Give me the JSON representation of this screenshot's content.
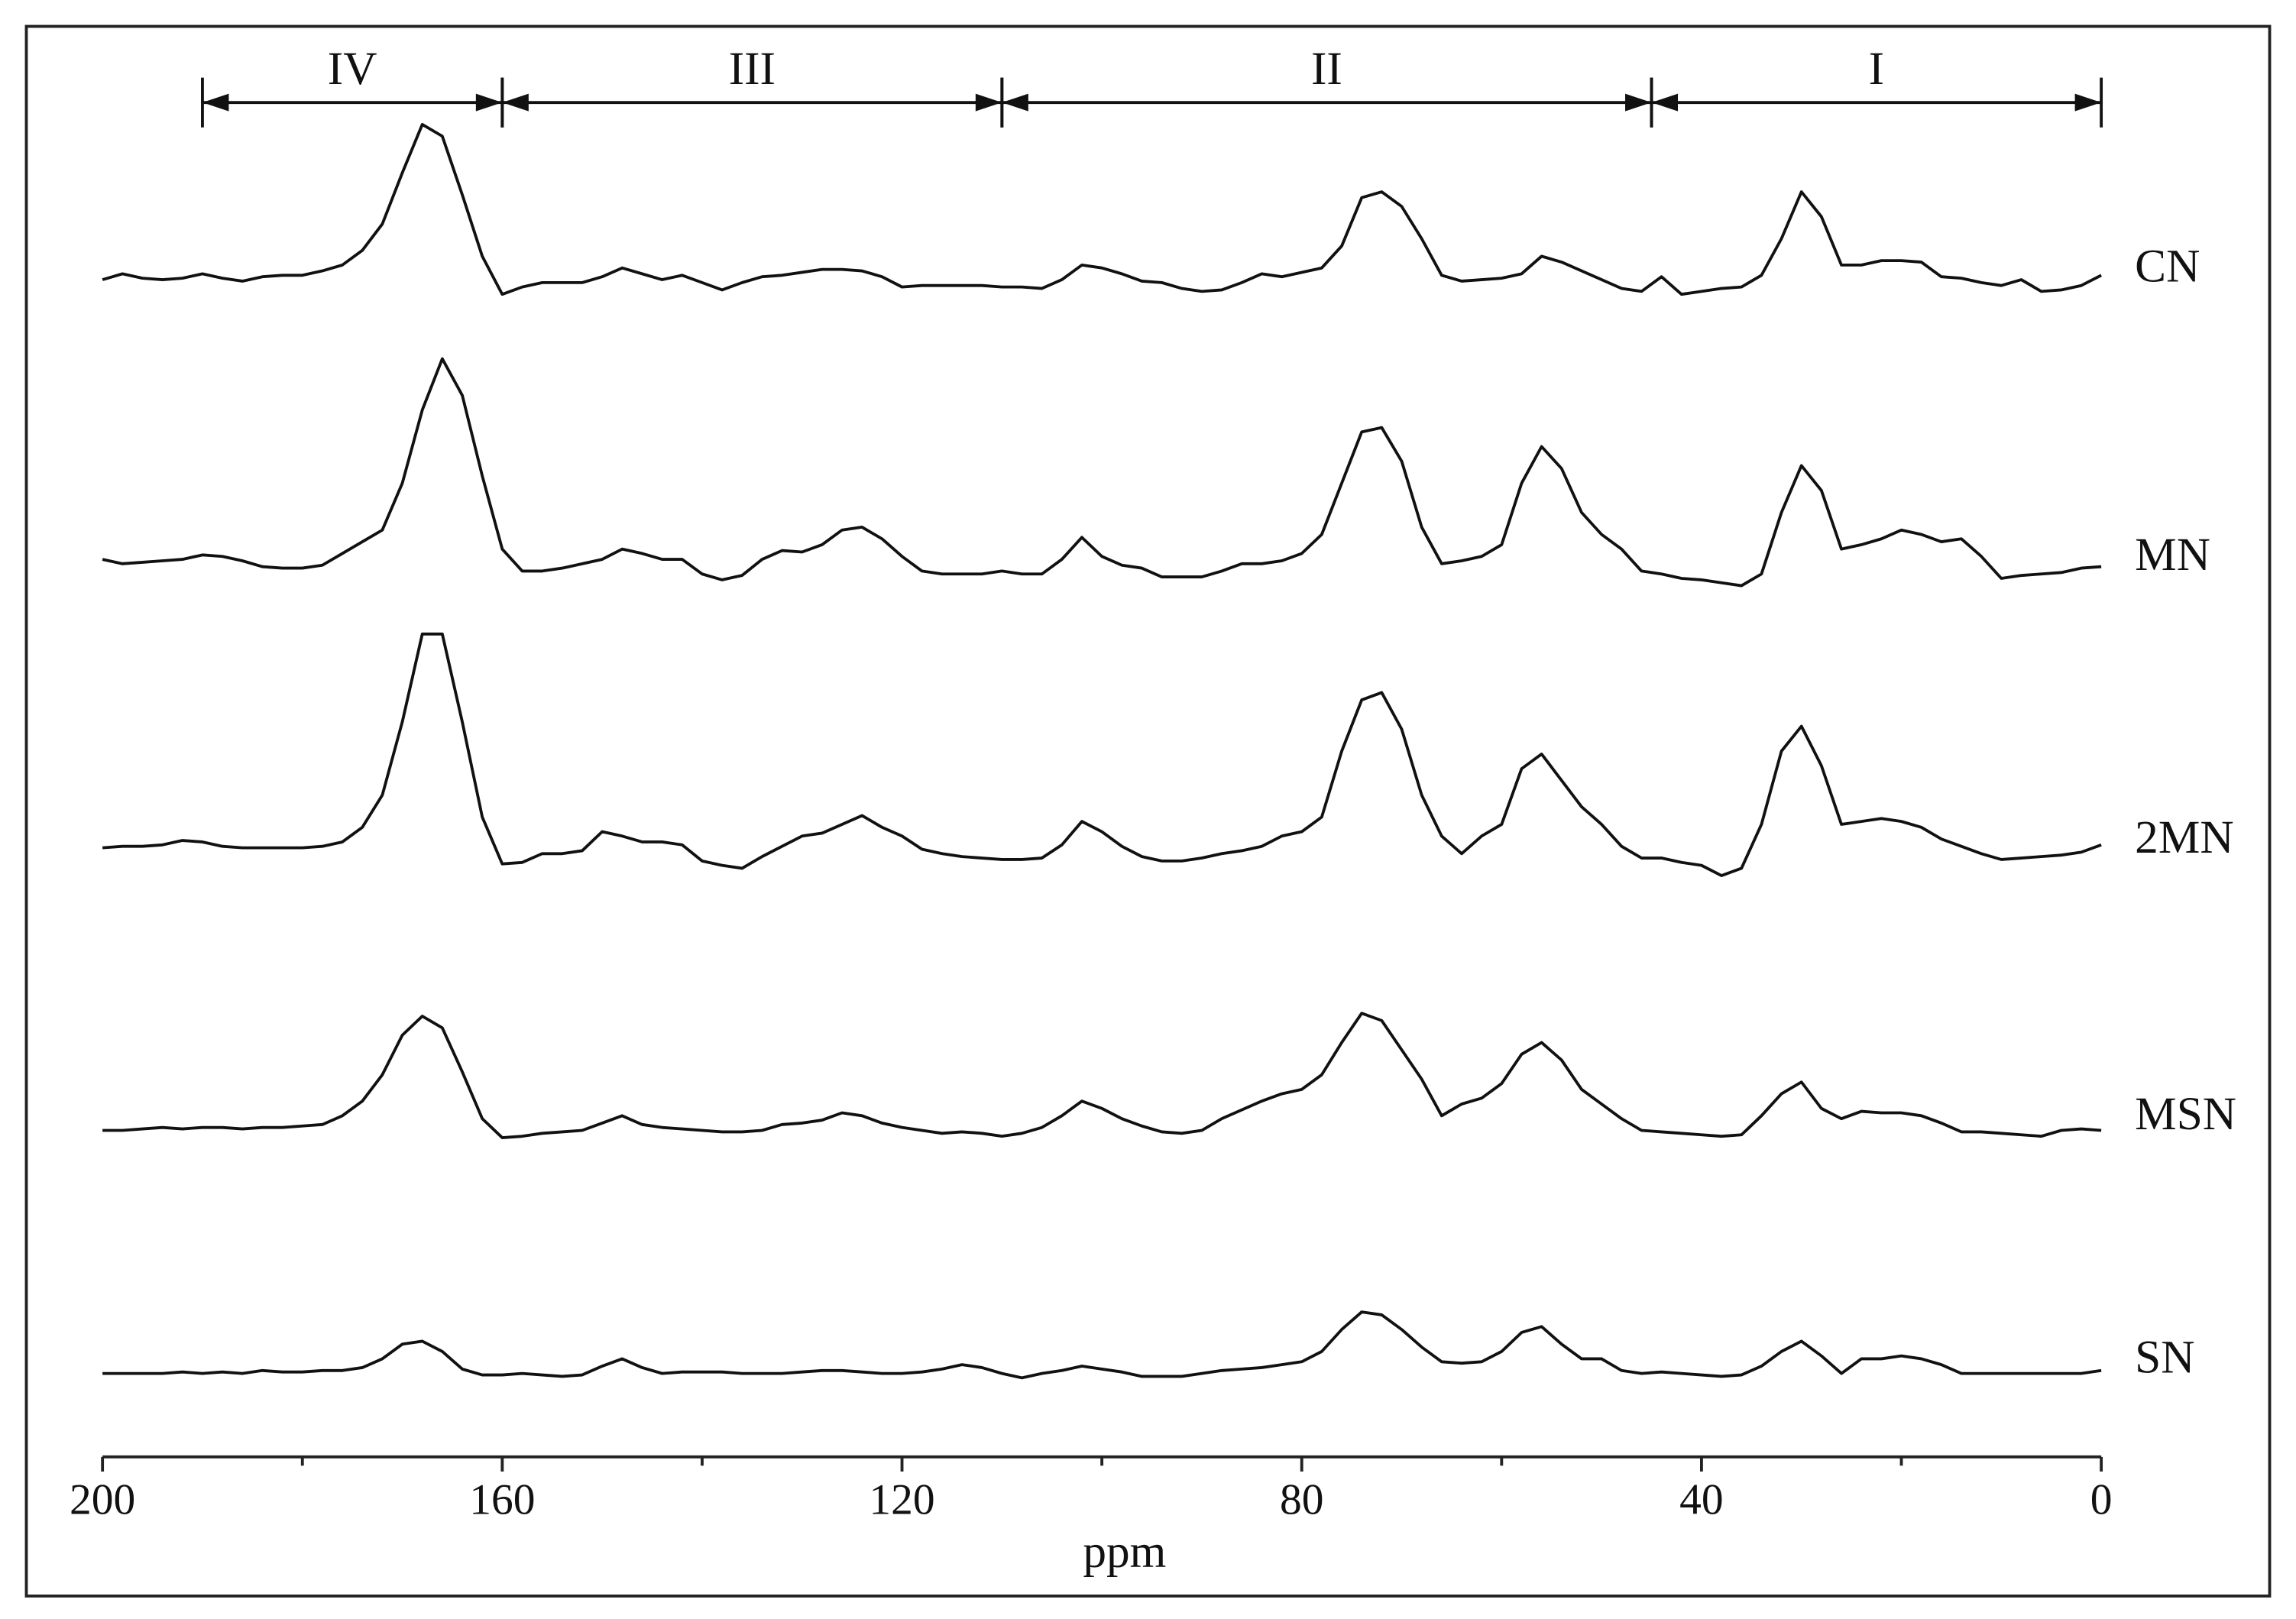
{
  "chart_data": {
    "type": "line",
    "x_label": "ppm",
    "xlim": [
      200,
      0
    ],
    "xticks": [
      200,
      160,
      120,
      80,
      40,
      0
    ],
    "xminorticks": [
      180,
      140,
      100,
      60,
      20
    ],
    "regions": [
      {
        "label": "IV",
        "from": 190,
        "to": 160
      },
      {
        "label": "III",
        "from": 160,
        "to": 110
      },
      {
        "label": "II",
        "from": 110,
        "to": 45
      },
      {
        "label": "I",
        "from": 45,
        "to": 0
      }
    ],
    "x": [
      200,
      198,
      196,
      194,
      192,
      190,
      188,
      186,
      184,
      182,
      180,
      178,
      176,
      174,
      172,
      170,
      168,
      166,
      164,
      162,
      160,
      158,
      156,
      154,
      152,
      150,
      148,
      146,
      144,
      142,
      140,
      138,
      136,
      134,
      132,
      130,
      128,
      126,
      124,
      122,
      120,
      118,
      116,
      114,
      112,
      110,
      108,
      106,
      104,
      102,
      100,
      98,
      96,
      94,
      92,
      90,
      88,
      86,
      84,
      82,
      80,
      78,
      76,
      74,
      72,
      70,
      68,
      66,
      64,
      62,
      60,
      58,
      56,
      54,
      52,
      50,
      48,
      46,
      44,
      42,
      40,
      38,
      36,
      34,
      32,
      30,
      28,
      26,
      24,
      22,
      20,
      18,
      16,
      14,
      12,
      10,
      8,
      6,
      4,
      2,
      0
    ],
    "series": [
      {
        "name": "CN",
        "color": "#111111",
        "values": [
          2,
          6,
          3,
          2,
          3,
          6,
          3,
          1,
          4,
          5,
          5,
          8,
          12,
          22,
          40,
          75,
          108,
          100,
          60,
          18,
          -8,
          -3,
          0,
          0,
          0,
          4,
          10,
          6,
          2,
          5,
          0,
          -5,
          0,
          4,
          5,
          7,
          9,
          9,
          8,
          4,
          -3,
          -2,
          -2,
          -2,
          -2,
          -3,
          -3,
          -4,
          2,
          12,
          10,
          6,
          1,
          0,
          -4,
          -6,
          -5,
          0,
          6,
          4,
          7,
          10,
          25,
          58,
          62,
          52,
          30,
          5,
          1,
          2,
          3,
          6,
          18,
          14,
          8,
          2,
          -4,
          -6,
          4,
          -8,
          -6,
          -4,
          -3,
          5,
          30,
          62,
          45,
          12,
          12,
          15,
          15,
          14,
          4,
          3,
          0,
          -2,
          2,
          -6,
          -5,
          -2,
          5
        ]
      },
      {
        "name": "MN",
        "color": "#111111",
        "values": [
          8,
          5,
          6,
          7,
          8,
          11,
          10,
          7,
          3,
          2,
          2,
          4,
          12,
          20,
          28,
          60,
          110,
          145,
          120,
          65,
          15,
          0,
          0,
          2,
          5,
          8,
          15,
          12,
          8,
          8,
          -2,
          -6,
          -3,
          8,
          14,
          13,
          18,
          28,
          30,
          22,
          10,
          0,
          -2,
          -2,
          -2,
          0,
          -2,
          -2,
          8,
          23,
          10,
          4,
          2,
          -4,
          -4,
          -4,
          0,
          5,
          5,
          7,
          12,
          25,
          60,
          95,
          98,
          75,
          30,
          5,
          7,
          10,
          18,
          60,
          85,
          70,
          40,
          25,
          15,
          0,
          -2,
          -5,
          -6,
          -8,
          -10,
          -2,
          40,
          72,
          55,
          15,
          18,
          22,
          28,
          25,
          20,
          22,
          10,
          -5,
          -3,
          -2,
          -1,
          2,
          3
        ]
      },
      {
        "name": "2MN",
        "color": "#111111",
        "values": [
          4,
          5,
          5,
          6,
          9,
          8,
          5,
          4,
          4,
          4,
          4,
          5,
          8,
          18,
          40,
          90,
          150,
          150,
          90,
          25,
          -7,
          -6,
          0,
          0,
          2,
          15,
          12,
          8,
          8,
          6,
          -5,
          -8,
          -10,
          -2,
          5,
          12,
          14,
          20,
          26,
          18,
          12,
          3,
          0,
          -2,
          -3,
          -4,
          -4,
          -3,
          6,
          22,
          15,
          5,
          -2,
          -5,
          -5,
          -3,
          0,
          2,
          5,
          12,
          15,
          25,
          70,
          105,
          110,
          85,
          40,
          12,
          0,
          12,
          20,
          58,
          68,
          50,
          32,
          20,
          5,
          -3,
          -3,
          -6,
          -8,
          -15,
          -10,
          20,
          70,
          87,
          60,
          20,
          22,
          24,
          22,
          18,
          10,
          5,
          0,
          -4,
          -3,
          -2,
          -1,
          1,
          6
        ]
      },
      {
        "name": "MSN",
        "color": "#111111",
        "values": [
          0,
          0,
          1,
          2,
          1,
          2,
          2,
          1,
          2,
          2,
          3,
          4,
          10,
          20,
          38,
          65,
          78,
          70,
          40,
          8,
          -5,
          -4,
          -2,
          -1,
          0,
          5,
          10,
          4,
          2,
          1,
          0,
          -1,
          -1,
          0,
          4,
          5,
          7,
          12,
          10,
          5,
          2,
          0,
          -2,
          -1,
          -2,
          -4,
          -2,
          2,
          10,
          20,
          15,
          8,
          3,
          -1,
          -2,
          0,
          8,
          14,
          20,
          25,
          28,
          38,
          60,
          80,
          75,
          55,
          35,
          10,
          18,
          22,
          32,
          52,
          60,
          48,
          28,
          18,
          8,
          0,
          -1,
          -2,
          -3,
          -4,
          -3,
          10,
          25,
          33,
          15,
          8,
          13,
          12,
          12,
          10,
          5,
          -1,
          -1,
          -2,
          -3,
          -4,
          0,
          1,
          0
        ]
      },
      {
        "name": "SN",
        "color": "#111111",
        "values": [
          0,
          0,
          0,
          0,
          1,
          0,
          1,
          0,
          2,
          1,
          1,
          2,
          2,
          4,
          10,
          20,
          22,
          15,
          3,
          -1,
          -1,
          0,
          -1,
          -2,
          -1,
          5,
          10,
          4,
          0,
          1,
          1,
          1,
          0,
          0,
          0,
          1,
          2,
          2,
          1,
          0,
          0,
          1,
          3,
          6,
          4,
          0,
          -3,
          0,
          2,
          5,
          3,
          1,
          -2,
          -2,
          -2,
          0,
          2,
          3,
          4,
          6,
          8,
          15,
          30,
          42,
          40,
          30,
          18,
          8,
          7,
          8,
          15,
          28,
          32,
          20,
          10,
          10,
          2,
          0,
          1,
          0,
          -1,
          -2,
          -1,
          5,
          15,
          22,
          12,
          0,
          10,
          10,
          12,
          10,
          6,
          0,
          0,
          0,
          0,
          0,
          0,
          0,
          2
        ]
      }
    ]
  }
}
